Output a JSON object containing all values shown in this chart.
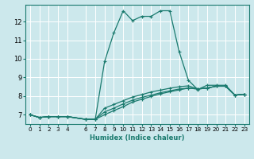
{
  "background_color": "#cce8ec",
  "grid_color": "#ffffff",
  "line_color": "#1a7a6e",
  "xlabel": "Humidex (Indice chaleur)",
  "xlim": [
    -0.5,
    23.5
  ],
  "ylim": [
    6.5,
    12.9
  ],
  "xticks": [
    0,
    1,
    2,
    3,
    4,
    6,
    7,
    8,
    9,
    10,
    11,
    12,
    13,
    14,
    15,
    16,
    17,
    18,
    19,
    20,
    21,
    22,
    23
  ],
  "xtick_labels": [
    "0",
    "1",
    "2",
    "3",
    "4",
    "6",
    "7",
    "8",
    "9",
    "10",
    "11",
    "12",
    "13",
    "14",
    "15",
    "16",
    "17",
    "18",
    "19",
    "20",
    "21",
    "22",
    "23"
  ],
  "yticks": [
    7,
    8,
    9,
    10,
    11,
    12
  ],
  "lines": [
    {
      "x": [
        0,
        1,
        2,
        3,
        4,
        6,
        7,
        8,
        9,
        10,
        11,
        12,
        13,
        14,
        15,
        16,
        17,
        18,
        19,
        20,
        21,
        22,
        23
      ],
      "y": [
        7.0,
        6.85,
        6.9,
        6.9,
        6.9,
        6.75,
        6.75,
        9.85,
        11.4,
        12.58,
        12.05,
        12.28,
        12.28,
        12.58,
        12.58,
        10.4,
        8.85,
        8.35,
        8.58,
        8.58,
        8.58,
        8.05,
        8.1
      ]
    },
    {
      "x": [
        0,
        1,
        2,
        3,
        4,
        6,
        7,
        8,
        9,
        10,
        11,
        12,
        13,
        14,
        15,
        16,
        17,
        18,
        19,
        20,
        21,
        22,
        23
      ],
      "y": [
        7.0,
        6.85,
        6.9,
        6.9,
        6.9,
        6.75,
        6.75,
        7.35,
        7.55,
        7.75,
        7.95,
        8.08,
        8.22,
        8.32,
        8.42,
        8.5,
        8.55,
        8.38,
        8.43,
        8.53,
        8.53,
        8.05,
        8.1
      ]
    },
    {
      "x": [
        0,
        1,
        2,
        3,
        4,
        6,
        7,
        8,
        9,
        10,
        11,
        12,
        13,
        14,
        15,
        16,
        17,
        18,
        19,
        20,
        21,
        22,
        23
      ],
      "y": [
        7.0,
        6.85,
        6.9,
        6.9,
        6.9,
        6.75,
        6.75,
        7.15,
        7.35,
        7.58,
        7.78,
        7.93,
        8.05,
        8.18,
        8.28,
        8.38,
        8.43,
        8.38,
        8.43,
        8.53,
        8.53,
        8.05,
        8.1
      ]
    },
    {
      "x": [
        0,
        1,
        2,
        3,
        4,
        6,
        7,
        8,
        9,
        10,
        11,
        12,
        13,
        14,
        15,
        16,
        17,
        18,
        19,
        20,
        21,
        22,
        23
      ],
      "y": [
        7.0,
        6.85,
        6.9,
        6.9,
        6.9,
        6.75,
        6.75,
        7.0,
        7.22,
        7.43,
        7.68,
        7.83,
        7.98,
        8.12,
        8.23,
        8.33,
        8.43,
        8.38,
        8.43,
        8.53,
        8.53,
        8.05,
        8.1
      ]
    }
  ]
}
